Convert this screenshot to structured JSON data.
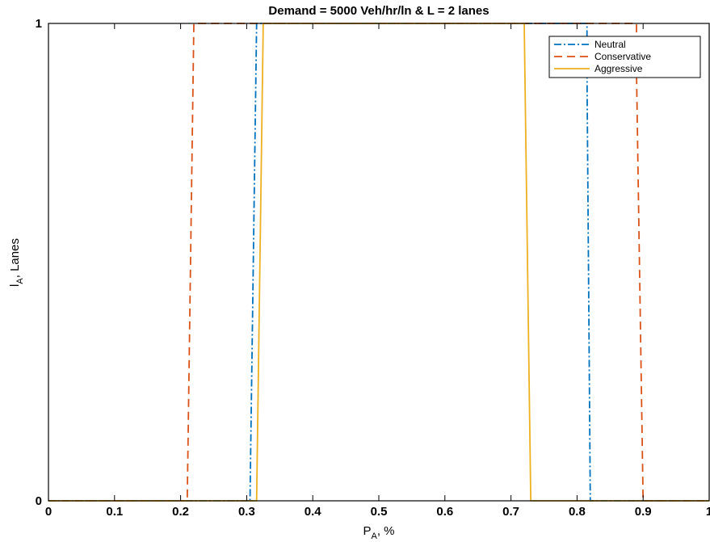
{
  "chart_data": {
    "type": "line",
    "title": "Demand = 5000 Veh/hr/ln & L = 2 lanes",
    "xlabel": {
      "main": "P",
      "sub": "A",
      "suffix": ", %"
    },
    "ylabel": {
      "main": "l",
      "sub": "A",
      "suffix": ", Lanes"
    },
    "xlim": [
      0,
      1
    ],
    "ylim": [
      0,
      1
    ],
    "xticks": [
      0,
      0.1,
      0.2,
      0.3,
      0.4,
      0.5,
      0.6,
      0.7,
      0.8,
      0.9,
      1
    ],
    "xtick_labels": [
      "0",
      "0.1",
      "0.2",
      "0.3",
      "0.4",
      "0.5",
      "0.6",
      "0.7",
      "0.8",
      "0.9",
      "1"
    ],
    "yticks": [
      0,
      1
    ],
    "ytick_labels": [
      "0",
      "1"
    ],
    "grid": false,
    "legend_position": "top-right",
    "series": [
      {
        "name": "Neutral",
        "color": "#0072BD",
        "style": "dashdot",
        "x": [
          0,
          0.305,
          0.31,
          0.315,
          0.815,
          0.815,
          0.82,
          1
        ],
        "y": [
          0,
          0,
          0.5,
          1,
          1,
          0.9,
          0,
          0
        ]
      },
      {
        "name": "Conservative",
        "color": "#D95319",
        "style": "dashed",
        "x": [
          0,
          0.21,
          0.215,
          0.22,
          0.89,
          0.89,
          0.9,
          1
        ],
        "y": [
          0,
          0,
          0.5,
          1,
          1,
          0.9,
          0,
          0
        ]
      },
      {
        "name": "Aggressive",
        "color": "#EDB120",
        "style": "solid",
        "x": [
          0,
          0.315,
          0.325,
          0.72,
          0.73,
          1
        ],
        "y": [
          0,
          0,
          1,
          1,
          0,
          0
        ]
      }
    ]
  }
}
